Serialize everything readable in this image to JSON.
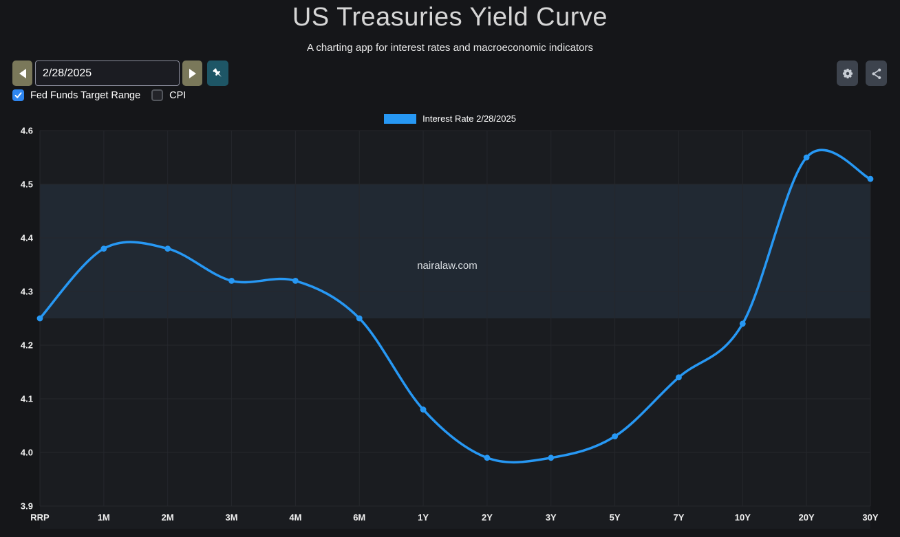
{
  "header": {
    "title": "US Treasuries Yield Curve",
    "subtitle": "A charting app for interest rates and macroeconomic indicators"
  },
  "controls": {
    "date_value": "2/28/2025",
    "icons": {
      "prev": "left-triangle",
      "next": "right-triangle",
      "pin": "pushpin",
      "settings": "gear",
      "share": "share-network"
    }
  },
  "checkboxes": [
    {
      "label": "Fed Funds Target Range",
      "checked": true
    },
    {
      "label": "CPI",
      "checked": false
    }
  ],
  "legend": {
    "label": "Interest Rate 2/28/2025",
    "swatch_color": "#2798f4"
  },
  "watermark": "nairalaw.com",
  "colors": {
    "accent_blue": "#2798f4",
    "checkbox_blue": "#2e86f0",
    "nav_button_olive": "#7a785a",
    "pin_button_teal": "#1e5666",
    "icon_button_gray": "#3d434d",
    "page_background": "#151619",
    "plot_background": "#1a1c20",
    "band_fill": "#212933",
    "grid_line": "#25272c"
  },
  "chart_data": {
    "type": "line",
    "title": "US Treasuries Yield Curve",
    "categories": [
      "RRP",
      "1M",
      "2M",
      "3M",
      "4M",
      "6M",
      "1Y",
      "2Y",
      "3Y",
      "5Y",
      "7Y",
      "10Y",
      "20Y",
      "30Y"
    ],
    "series": [
      {
        "name": "Interest Rate 2/28/2025",
        "color": "#2798f4",
        "values": [
          4.25,
          4.38,
          4.38,
          4.32,
          4.32,
          4.25,
          4.08,
          3.99,
          3.99,
          4.03,
          4.14,
          4.24,
          4.55,
          4.51
        ]
      }
    ],
    "ylim": [
      3.9,
      4.6
    ],
    "ytick_step": 0.1,
    "grid": true,
    "legend_position": "top-center",
    "band": {
      "label": "Fed Funds Target Range",
      "from": 4.25,
      "to": 4.5,
      "color": "#212933"
    },
    "watermark": "nairalaw.com"
  }
}
